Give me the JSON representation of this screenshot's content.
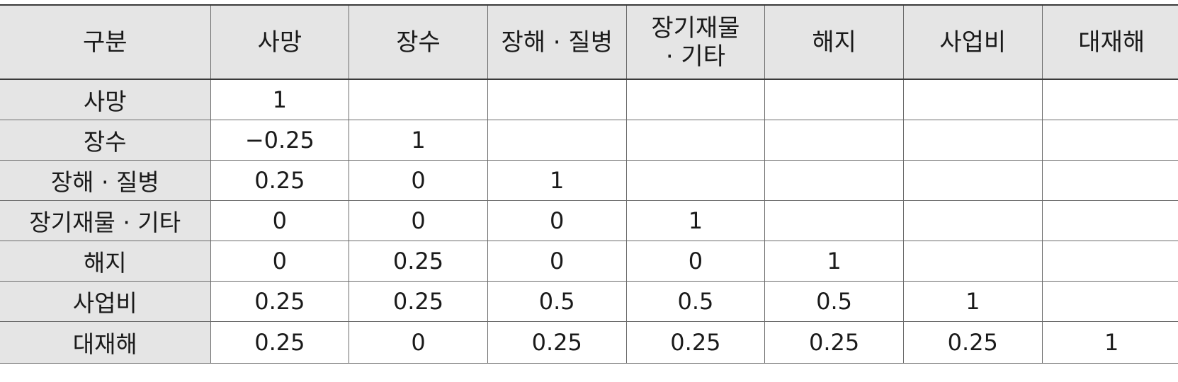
{
  "table": {
    "header": {
      "corner": "구분",
      "columns": [
        "사망",
        "장수",
        "장해 · 질병",
        "장기재물\n· 기타",
        "해지",
        "사업비",
        "대재해"
      ]
    },
    "rows": [
      {
        "label": "사망",
        "cells": [
          "1",
          "",
          "",
          "",
          "",
          "",
          ""
        ]
      },
      {
        "label": "장수",
        "cells": [
          "−0.25",
          "1",
          "",
          "",
          "",
          "",
          ""
        ]
      },
      {
        "label": "장해 · 질병",
        "cells": [
          "0.25",
          "0",
          "1",
          "",
          "",
          "",
          ""
        ]
      },
      {
        "label": "장기재물 · 기타",
        "cells": [
          "0",
          "0",
          "0",
          "1",
          "",
          "",
          ""
        ]
      },
      {
        "label": "해지",
        "cells": [
          "0",
          "0.25",
          "0",
          "0",
          "1",
          "",
          ""
        ]
      },
      {
        "label": "사업비",
        "cells": [
          "0.25",
          "0.25",
          "0.5",
          "0.5",
          "0.5",
          "1",
          ""
        ]
      },
      {
        "label": "대재해",
        "cells": [
          "0.25",
          "0",
          "0.25",
          "0.25",
          "0.25",
          "0.25",
          "1"
        ]
      }
    ]
  }
}
